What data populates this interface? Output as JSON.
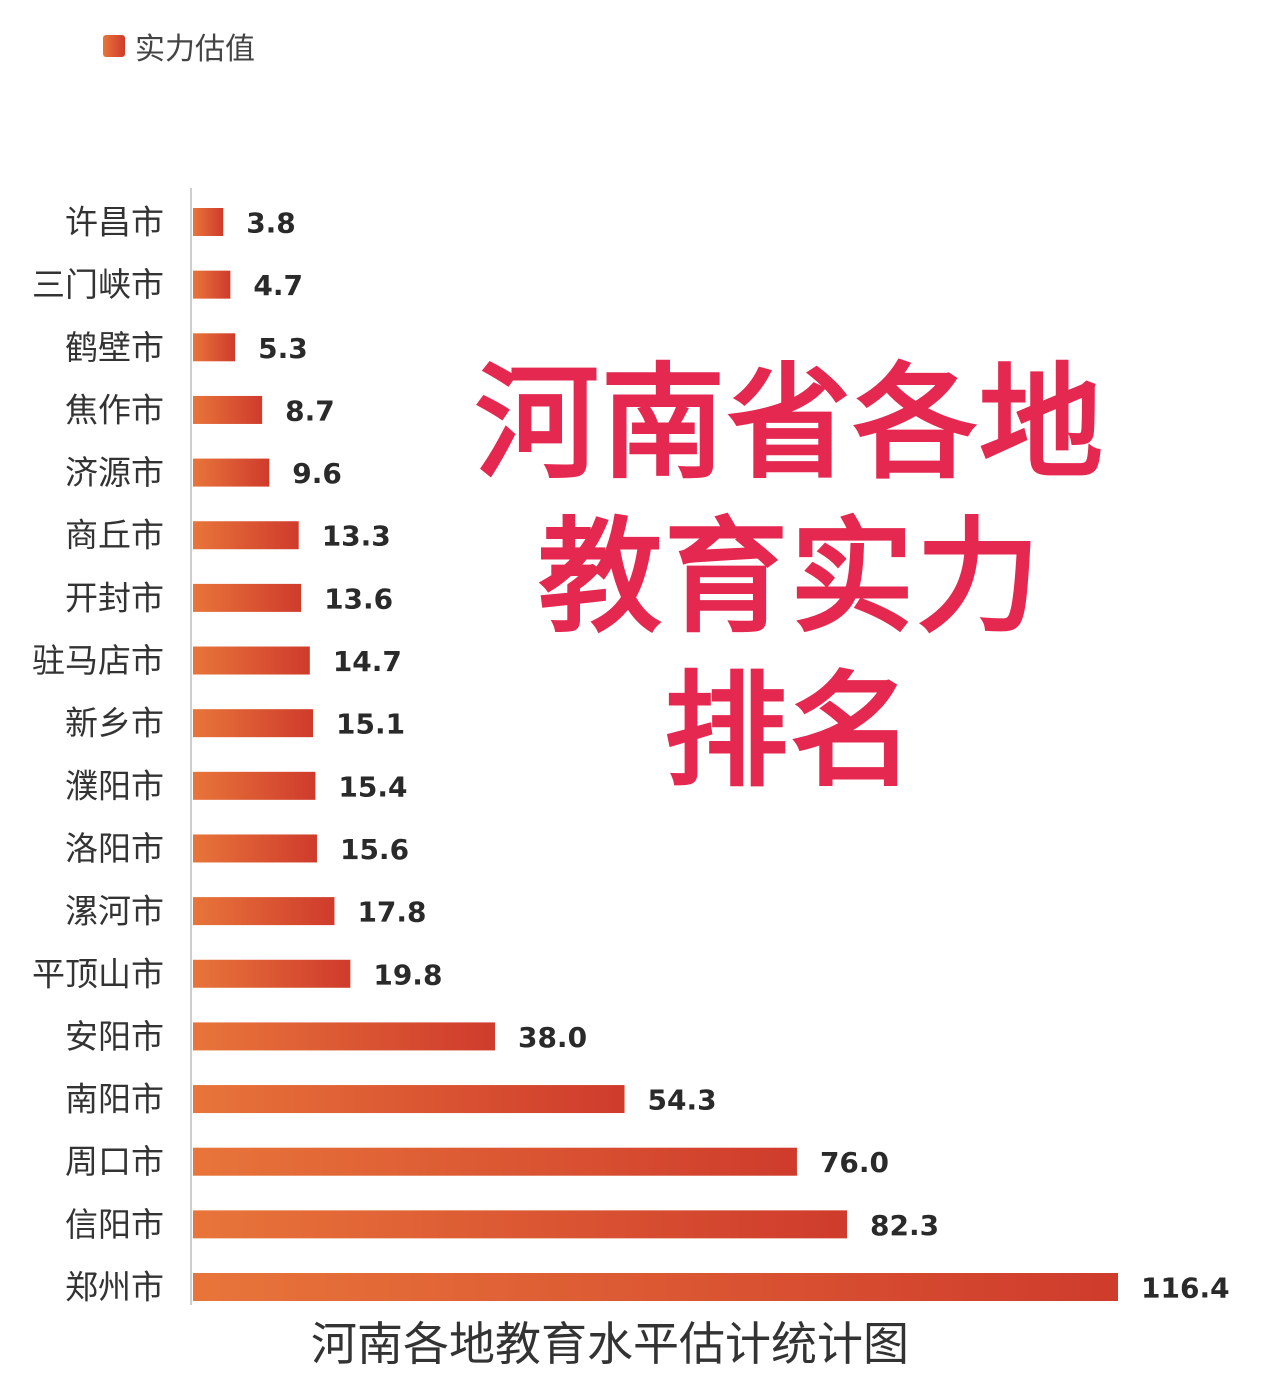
{
  "overlay": {
    "line1": "河南省各地",
    "line2": "教育实力",
    "line3": "排名"
  },
  "colors": {
    "bar_start": "#e8753a",
    "bar_end": "#cf3b2c",
    "overlay_text": "#e5284f",
    "axis": "#cfcfcf"
  },
  "chart_data": {
    "type": "bar",
    "orientation": "horizontal",
    "title": "河南各地教育水平估计统计图",
    "legend": {
      "label": "实力估值",
      "position": "top-left"
    },
    "categories": [
      "许昌市",
      "三门峡市",
      "鹤壁市",
      "焦作市",
      "济源市",
      "商丘市",
      "开封市",
      "驻马店市",
      "新乡市",
      "濮阳市",
      "洛阳市",
      "漯河市",
      "平顶山市",
      "安阳市",
      "南阳市",
      "周口市",
      "信阳市",
      "郑州市"
    ],
    "series": [
      {
        "name": "实力估值",
        "values": [
          3.8,
          4.7,
          5.3,
          8.7,
          9.6,
          13.3,
          13.6,
          14.7,
          15.1,
          15.4,
          15.6,
          17.8,
          19.8,
          38.0,
          54.3,
          76.0,
          82.3,
          116.4
        ],
        "value_labels": [
          "3.8",
          "4.7",
          "5.3",
          "8.7",
          "9.6",
          "13.3",
          "13.6",
          "14.7",
          "15.1",
          "15.4",
          "15.6",
          "17.8",
          "19.8",
          "38.0",
          "54.3",
          "76.0",
          "82.3",
          "116.4"
        ]
      }
    ],
    "xlim": [
      0,
      116.4
    ],
    "grid": false
  }
}
